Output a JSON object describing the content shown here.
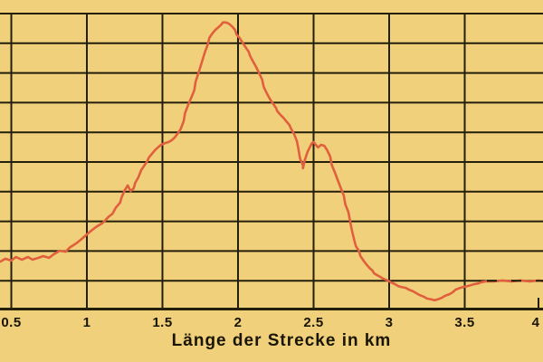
{
  "chart_data": {
    "type": "line",
    "title": "",
    "xlabel": "Länge der Strecke in km",
    "ylabel": "",
    "x_ticks": [
      0.5,
      1,
      1.5,
      2,
      2.5,
      3,
      3.5,
      4
    ],
    "x_tick_labels": [
      "0.5",
      "1",
      "1.5",
      "2",
      "2.5",
      "3",
      "3.5",
      "4"
    ],
    "x_range_visible": [
      0.43,
      4.02
    ],
    "y_unit": "horizontal-gridline intervals above baseline (y-axis labels cropped out of frame)",
    "y_gridline_count": 10,
    "grid": true,
    "legend": "none",
    "colors": {
      "background": "#f1d07c",
      "grid": "#221f0a",
      "text": "#191503",
      "line": "#e0603d"
    },
    "profile_points": [
      [
        0.43,
        1.65
      ],
      [
        0.46,
        1.74
      ],
      [
        0.5,
        1.68
      ],
      [
        0.53,
        1.8
      ],
      [
        0.57,
        1.71
      ],
      [
        0.61,
        1.8
      ],
      [
        0.64,
        1.71
      ],
      [
        0.68,
        1.77
      ],
      [
        0.71,
        1.83
      ],
      [
        0.75,
        1.77
      ],
      [
        0.78,
        1.89
      ],
      [
        0.82,
        2.01
      ],
      [
        0.86,
        1.98
      ],
      [
        0.89,
        2.13
      ],
      [
        0.93,
        2.26
      ],
      [
        0.96,
        2.38
      ],
      [
        1.0,
        2.56
      ],
      [
        1.02,
        2.65
      ],
      [
        1.05,
        2.77
      ],
      [
        1.07,
        2.84
      ],
      [
        1.1,
        2.93
      ],
      [
        1.12,
        3.02
      ],
      [
        1.14,
        3.14
      ],
      [
        1.17,
        3.26
      ],
      [
        1.19,
        3.45
      ],
      [
        1.22,
        3.63
      ],
      [
        1.23,
        3.81
      ],
      [
        1.25,
        4.05
      ],
      [
        1.27,
        4.21
      ],
      [
        1.29,
        4.02
      ],
      [
        1.31,
        4.12
      ],
      [
        1.32,
        4.3
      ],
      [
        1.34,
        4.48
      ],
      [
        1.36,
        4.73
      ],
      [
        1.38,
        4.88
      ],
      [
        1.4,
        5.03
      ],
      [
        1.41,
        5.15
      ],
      [
        1.43,
        5.27
      ],
      [
        1.45,
        5.4
      ],
      [
        1.47,
        5.49
      ],
      [
        1.49,
        5.58
      ],
      [
        1.52,
        5.64
      ],
      [
        1.54,
        5.67
      ],
      [
        1.56,
        5.73
      ],
      [
        1.58,
        5.82
      ],
      [
        1.6,
        5.95
      ],
      [
        1.62,
        6.1
      ],
      [
        1.64,
        6.37
      ],
      [
        1.65,
        6.65
      ],
      [
        1.67,
        6.92
      ],
      [
        1.69,
        7.16
      ],
      [
        1.71,
        7.41
      ],
      [
        1.72,
        7.71
      ],
      [
        1.74,
        8.02
      ],
      [
        1.76,
        8.35
      ],
      [
        1.78,
        8.69
      ],
      [
        1.8,
        8.96
      ],
      [
        1.81,
        9.18
      ],
      [
        1.83,
        9.33
      ],
      [
        1.85,
        9.45
      ],
      [
        1.87,
        9.54
      ],
      [
        1.89,
        9.63
      ],
      [
        1.9,
        9.7
      ],
      [
        1.92,
        9.7
      ],
      [
        1.94,
        9.66
      ],
      [
        1.96,
        9.57
      ],
      [
        1.98,
        9.45
      ],
      [
        1.99,
        9.3
      ],
      [
        2.01,
        9.18
      ],
      [
        2.03,
        9.02
      ],
      [
        2.05,
        8.87
      ],
      [
        2.07,
        8.72
      ],
      [
        2.08,
        8.57
      ],
      [
        2.1,
        8.38
      ],
      [
        2.12,
        8.2
      ],
      [
        2.14,
        7.99
      ],
      [
        2.16,
        7.77
      ],
      [
        2.17,
        7.53
      ],
      [
        2.19,
        7.32
      ],
      [
        2.21,
        7.13
      ],
      [
        2.23,
        6.98
      ],
      [
        2.25,
        6.83
      ],
      [
        2.26,
        6.71
      ],
      [
        2.28,
        6.59
      ],
      [
        2.3,
        6.49
      ],
      [
        2.32,
        6.37
      ],
      [
        2.34,
        6.25
      ],
      [
        2.35,
        6.13
      ],
      [
        2.37,
        5.95
      ],
      [
        2.39,
        5.7
      ],
      [
        2.4,
        5.43
      ],
      [
        2.41,
        5.12
      ],
      [
        2.43,
        4.88
      ],
      [
        2.43,
        4.79
      ],
      [
        2.44,
        5.03
      ],
      [
        2.46,
        5.34
      ],
      [
        2.48,
        5.55
      ],
      [
        2.49,
        5.64
      ],
      [
        2.5,
        5.67
      ],
      [
        2.52,
        5.55
      ],
      [
        2.53,
        5.49
      ],
      [
        2.55,
        5.58
      ],
      [
        2.57,
        5.55
      ],
      [
        2.59,
        5.4
      ],
      [
        2.61,
        5.18
      ],
      [
        2.62,
        4.91
      ],
      [
        2.64,
        4.66
      ],
      [
        2.66,
        4.39
      ],
      [
        2.68,
        4.12
      ],
      [
        2.7,
        3.87
      ],
      [
        2.71,
        3.57
      ],
      [
        2.73,
        3.32
      ],
      [
        2.74,
        3.05
      ],
      [
        2.75,
        2.77
      ],
      [
        2.76,
        2.56
      ],
      [
        2.77,
        2.35
      ],
      [
        2.78,
        2.16
      ],
      [
        2.8,
        2.01
      ],
      [
        2.81,
        1.83
      ],
      [
        2.83,
        1.68
      ],
      [
        2.85,
        1.55
      ],
      [
        2.87,
        1.43
      ],
      [
        2.89,
        1.34
      ],
      [
        2.9,
        1.25
      ],
      [
        2.92,
        1.19
      ],
      [
        2.94,
        1.13
      ],
      [
        2.96,
        1.07
      ],
      [
        2.99,
        1.01
      ],
      [
        3.01,
        0.95
      ],
      [
        3.04,
        0.88
      ],
      [
        3.06,
        0.82
      ],
      [
        3.08,
        0.79
      ],
      [
        3.11,
        0.76
      ],
      [
        3.13,
        0.7
      ],
      [
        3.16,
        0.64
      ],
      [
        3.18,
        0.58
      ],
      [
        3.2,
        0.52
      ],
      [
        3.23,
        0.46
      ],
      [
        3.25,
        0.4
      ],
      [
        3.28,
        0.37
      ],
      [
        3.3,
        0.34
      ],
      [
        3.32,
        0.37
      ],
      [
        3.35,
        0.43
      ],
      [
        3.37,
        0.49
      ],
      [
        3.4,
        0.55
      ],
      [
        3.42,
        0.61
      ],
      [
        3.44,
        0.7
      ],
      [
        3.47,
        0.76
      ],
      [
        3.49,
        0.79
      ],
      [
        3.52,
        0.82
      ],
      [
        3.54,
        0.85
      ],
      [
        3.56,
        0.88
      ],
      [
        3.59,
        0.91
      ],
      [
        3.61,
        0.95
      ],
      [
        3.64,
        0.98
      ],
      [
        3.69,
        0.98
      ],
      [
        3.75,
        1.01
      ],
      [
        3.81,
        0.98
      ],
      [
        3.87,
        1.01
      ],
      [
        3.93,
        0.98
      ],
      [
        3.99,
        1.01
      ],
      [
        4.02,
        0.98
      ]
    ]
  }
}
